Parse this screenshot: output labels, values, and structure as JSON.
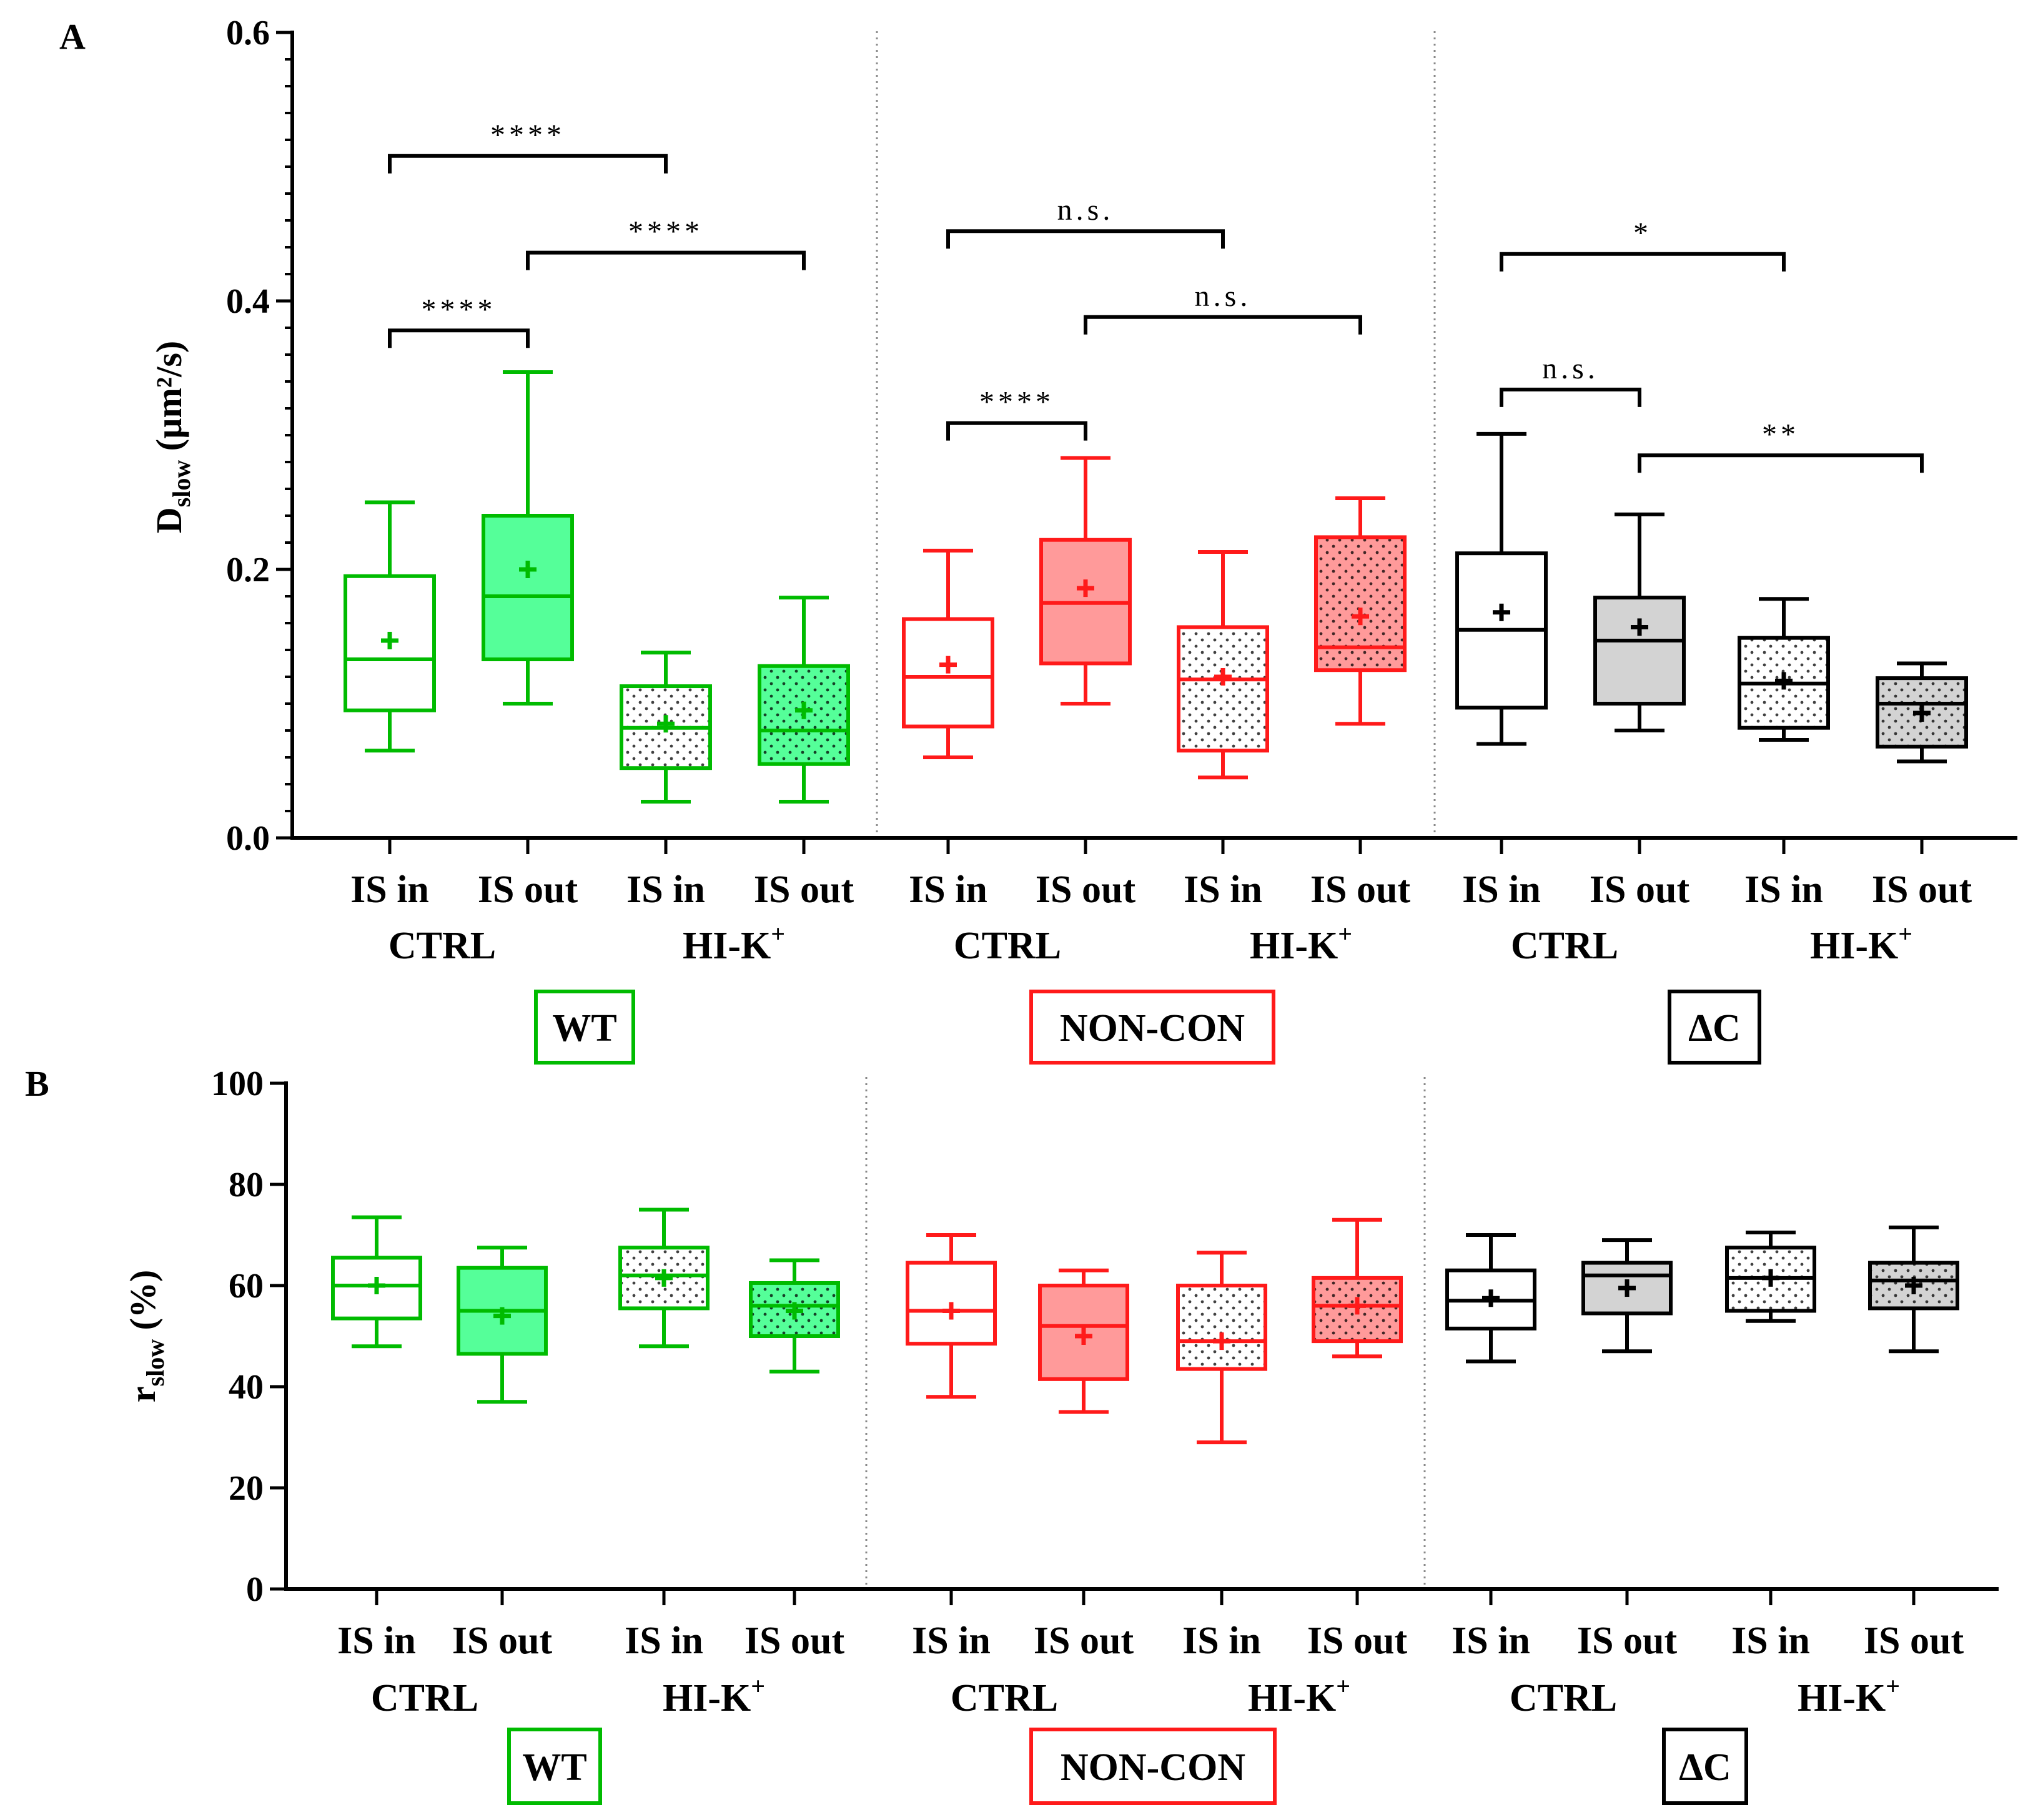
{
  "panel_labels": [
    "A",
    "B"
  ],
  "colors": {
    "WT": "#00bb00",
    "NON-CON": "#ff1a1a",
    "ΔC": "#000000"
  },
  "chart_data": [
    {
      "type": "box",
      "panel": "A",
      "ylabel": {
        "main": "D",
        "sub": "slow",
        "unit": " (µm²/s)"
      },
      "ylim": [
        0,
        0.6
      ],
      "yticks": [
        0.0,
        0.2,
        0.4,
        0.6
      ],
      "ytick_labels": [
        "0.0",
        "0.2",
        "0.4",
        "0.6"
      ],
      "categories": [
        "IS in",
        "IS out",
        "IS in",
        "IS out",
        "IS in",
        "IS out",
        "IS in",
        "IS out",
        "IS in",
        "IS out",
        "IS in",
        "IS out"
      ],
      "conditions": [
        {
          "text": "CTRL",
          "sup": ""
        },
        {
          "text": "HI-K",
          "sup": "+"
        },
        {
          "text": "CTRL",
          "sup": ""
        },
        {
          "text": "HI-K",
          "sup": "+"
        },
        {
          "text": "CTRL",
          "sup": ""
        },
        {
          "text": "HI-K",
          "sup": "+"
        }
      ],
      "groups": [
        "WT",
        "NON-CON",
        "ΔC"
      ],
      "boxes": [
        {
          "group": "WT",
          "category": "IS in",
          "condition": "CTRL",
          "fill": "open",
          "min": 0.065,
          "q1": 0.095,
          "median": 0.133,
          "q3": 0.195,
          "max": 0.25,
          "mean": 0.147
        },
        {
          "group": "WT",
          "category": "IS out",
          "condition": "CTRL",
          "fill": "solid",
          "min": 0.1,
          "q1": 0.133,
          "median": 0.18,
          "q3": 0.24,
          "max": 0.347,
          "mean": 0.2
        },
        {
          "group": "WT",
          "category": "IS in",
          "condition": "HI-K+",
          "fill": "dots",
          "min": 0.027,
          "q1": 0.052,
          "median": 0.082,
          "q3": 0.113,
          "max": 0.138,
          "mean": 0.085
        },
        {
          "group": "WT",
          "category": "IS out",
          "condition": "HI-K+",
          "fill": "solid-dots",
          "min": 0.027,
          "q1": 0.055,
          "median": 0.08,
          "q3": 0.128,
          "max": 0.179,
          "mean": 0.095
        },
        {
          "group": "NON-CON",
          "category": "IS in",
          "condition": "CTRL",
          "fill": "open",
          "min": 0.06,
          "q1": 0.083,
          "median": 0.12,
          "q3": 0.163,
          "max": 0.214,
          "mean": 0.129
        },
        {
          "group": "NON-CON",
          "category": "IS out",
          "condition": "CTRL",
          "fill": "solid",
          "min": 0.1,
          "q1": 0.13,
          "median": 0.175,
          "q3": 0.222,
          "max": 0.283,
          "mean": 0.186
        },
        {
          "group": "NON-CON",
          "category": "IS in",
          "condition": "HI-K+",
          "fill": "dots",
          "min": 0.045,
          "q1": 0.065,
          "median": 0.118,
          "q3": 0.157,
          "max": 0.213,
          "mean": 0.12
        },
        {
          "group": "NON-CON",
          "category": "IS out",
          "condition": "HI-K+",
          "fill": "solid-dots",
          "min": 0.085,
          "q1": 0.125,
          "median": 0.142,
          "q3": 0.224,
          "max": 0.253,
          "mean": 0.165
        },
        {
          "group": "ΔC",
          "category": "IS in",
          "condition": "CTRL",
          "fill": "open",
          "min": 0.07,
          "q1": 0.097,
          "median": 0.155,
          "q3": 0.212,
          "max": 0.301,
          "mean": 0.168
        },
        {
          "group": "ΔC",
          "category": "IS out",
          "condition": "CTRL",
          "fill": "solid",
          "min": 0.08,
          "q1": 0.1,
          "median": 0.147,
          "q3": 0.179,
          "max": 0.241,
          "mean": 0.157
        },
        {
          "group": "ΔC",
          "category": "IS in",
          "condition": "HI-K+",
          "fill": "dots",
          "min": 0.073,
          "q1": 0.082,
          "median": 0.115,
          "q3": 0.149,
          "max": 0.178,
          "mean": 0.117
        },
        {
          "group": "ΔC",
          "category": "IS out",
          "condition": "HI-K+",
          "fill": "solid-dots",
          "min": 0.057,
          "q1": 0.068,
          "median": 0.1,
          "q3": 0.119,
          "max": 0.13,
          "mean": 0.093
        }
      ],
      "significance": [
        {
          "from": 0,
          "to": 2,
          "y": 0.508,
          "label": "****"
        },
        {
          "from": 1,
          "to": 3,
          "y": 0.436,
          "label": "****"
        },
        {
          "from": 0,
          "to": 1,
          "y": 0.378,
          "label": "****"
        },
        {
          "from": 4,
          "to": 6,
          "y": 0.452,
          "label": "n.s."
        },
        {
          "from": 5,
          "to": 7,
          "y": 0.388,
          "label": "n.s."
        },
        {
          "from": 4,
          "to": 5,
          "y": 0.309,
          "label": "****"
        },
        {
          "from": 8,
          "to": 10,
          "y": 0.435,
          "label": "*"
        },
        {
          "from": 8,
          "to": 9,
          "y": 0.334,
          "label": "n.s."
        },
        {
          "from": 9,
          "to": 11,
          "y": 0.285,
          "label": "**"
        }
      ]
    },
    {
      "type": "box",
      "panel": "B",
      "ylabel": {
        "main": "r",
        "sub": "slow",
        "unit": " (%)"
      },
      "ylim": [
        0,
        100
      ],
      "yticks": [
        0,
        20,
        40,
        60,
        80,
        100
      ],
      "ytick_labels": [
        "0",
        "20",
        "40",
        "60",
        "80",
        "100"
      ],
      "categories": [
        "IS in",
        "IS out",
        "IS in",
        "IS out",
        "IS in",
        "IS out",
        "IS in",
        "IS out",
        "IS in",
        "IS out",
        "IS in",
        "IS out"
      ],
      "conditions": [
        {
          "text": "CTRL",
          "sup": ""
        },
        {
          "text": "HI-K",
          "sup": "+"
        },
        {
          "text": "CTRL",
          "sup": ""
        },
        {
          "text": "HI-K",
          "sup": "+"
        },
        {
          "text": "CTRL",
          "sup": ""
        },
        {
          "text": "HI-K",
          "sup": "+"
        }
      ],
      "groups": [
        "WT",
        "NON-CON",
        "ΔC"
      ],
      "boxes": [
        {
          "group": "WT",
          "category": "IS in",
          "condition": "CTRL",
          "fill": "open",
          "min": 48,
          "q1": 53.5,
          "median": 60,
          "q3": 65.5,
          "max": 73.5,
          "mean": 60
        },
        {
          "group": "WT",
          "category": "IS out",
          "condition": "CTRL",
          "fill": "solid",
          "min": 37,
          "q1": 46.5,
          "median": 55,
          "q3": 63.5,
          "max": 67.5,
          "mean": 54
        },
        {
          "group": "WT",
          "category": "IS in",
          "condition": "HI-K+",
          "fill": "dots",
          "min": 48,
          "q1": 55.5,
          "median": 62,
          "q3": 67.5,
          "max": 75,
          "mean": 61.5
        },
        {
          "group": "WT",
          "category": "IS out",
          "condition": "HI-K+",
          "fill": "solid-dots",
          "min": 43,
          "q1": 50,
          "median": 56,
          "q3": 60.5,
          "max": 65,
          "mean": 55
        },
        {
          "group": "NON-CON",
          "category": "IS in",
          "condition": "CTRL",
          "fill": "open",
          "min": 38,
          "q1": 48.5,
          "median": 55,
          "q3": 64.5,
          "max": 70,
          "mean": 55
        },
        {
          "group": "NON-CON",
          "category": "IS out",
          "condition": "CTRL",
          "fill": "solid",
          "min": 35,
          "q1": 41.5,
          "median": 52,
          "q3": 60,
          "max": 63,
          "mean": 50
        },
        {
          "group": "NON-CON",
          "category": "IS in",
          "condition": "HI-K+",
          "fill": "dots",
          "min": 29,
          "q1": 43.5,
          "median": 49,
          "q3": 60,
          "max": 66.5,
          "mean": 49
        },
        {
          "group": "NON-CON",
          "category": "IS out",
          "condition": "HI-K+",
          "fill": "solid-dots",
          "min": 46,
          "q1": 49,
          "median": 56,
          "q3": 61.5,
          "max": 73,
          "mean": 56
        },
        {
          "group": "ΔC",
          "category": "IS in",
          "condition": "CTRL",
          "fill": "open",
          "min": 45,
          "q1": 51.5,
          "median": 57,
          "q3": 63,
          "max": 70,
          "mean": 57.5
        },
        {
          "group": "ΔC",
          "category": "IS out",
          "condition": "CTRL",
          "fill": "solid",
          "min": 47,
          "q1": 54.5,
          "median": 62,
          "q3": 64.5,
          "max": 69,
          "mean": 59.5
        },
        {
          "group": "ΔC",
          "category": "IS in",
          "condition": "HI-K+",
          "fill": "dots",
          "min": 53,
          "q1": 55,
          "median": 61.5,
          "q3": 67.5,
          "max": 70.5,
          "mean": 61.5
        },
        {
          "group": "ΔC",
          "category": "IS out",
          "condition": "HI-K+",
          "fill": "solid-dots",
          "min": 47,
          "q1": 55.5,
          "median": 61,
          "q3": 64.5,
          "max": 71.5,
          "mean": 60
        }
      ],
      "significance": []
    }
  ]
}
